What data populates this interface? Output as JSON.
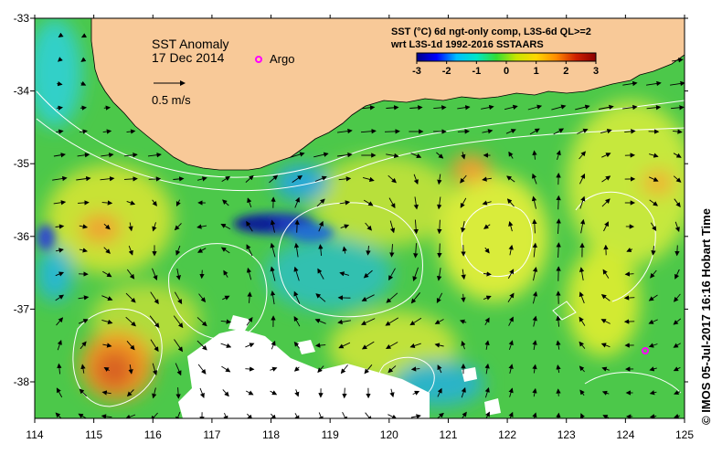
{
  "map": {
    "title_line1": "SST Anomaly",
    "title_line2": "17 Dec 2014",
    "argo_label": "Argo",
    "vector_scale_label": "0.5 m/s",
    "product_line1": "SST (°C) 6d ngt-only comp, L3S-6d QL>=2",
    "product_line2": "wrt L3S-1d 1992-2016 SSTAARS",
    "credit": "© IMOS 05-Jul-2017 16:16 Hobart Time"
  },
  "axes": {
    "lon_ticks": [
      "114",
      "115",
      "116",
      "117",
      "118",
      "119",
      "120",
      "121",
      "122",
      "123",
      "124",
      "125"
    ],
    "lat_ticks": [
      "-33",
      "-34",
      "-35",
      "-36",
      "-37",
      "-38"
    ]
  },
  "colorbar": {
    "ticks": [
      "-3",
      "-2",
      "-1",
      "0",
      "1",
      "2",
      "3"
    ],
    "colors": [
      "#00008b",
      "#0000ff",
      "#00bfff",
      "#00e6c8",
      "#33dd33",
      "#c8e600",
      "#ffd700",
      "#ff8c00",
      "#d02000",
      "#8b0000"
    ]
  },
  "palette": {
    "land": "#f8c998",
    "no_data": "#ffffff",
    "argo_marker": "#ff00ff",
    "contour": "#ffffff",
    "arrow": "#000000"
  }
}
